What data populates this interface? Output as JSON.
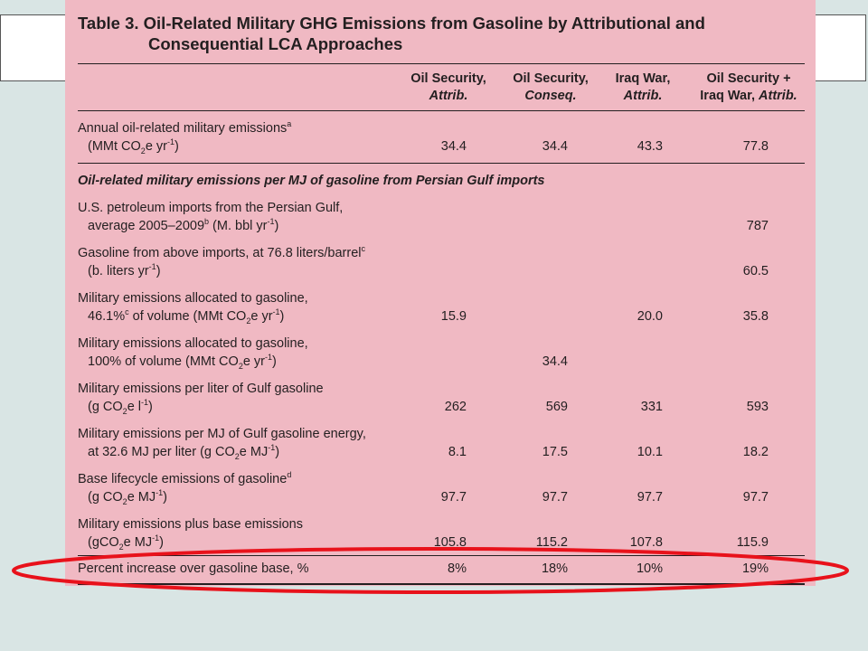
{
  "table": {
    "number": "Table 3.",
    "title_line1": "Oil-Related Military GHG Emissions from Gasoline by Attributional and",
    "title_line2": "Consequential LCA Approaches",
    "columns": [
      {
        "line1": "Oil Security,",
        "line2": "Attrib."
      },
      {
        "line1": "Oil Security,",
        "line2": "Conseq."
      },
      {
        "line1": "Iraq War,",
        "line2": "Attrib."
      },
      {
        "line1": "Oil Security +",
        "line2a": "Iraq War, ",
        "line2b": "Attrib."
      }
    ],
    "section_heading": "Oil-related military emissions per MJ of gasoline from Persian Gulf imports",
    "rows": [
      {
        "l1": "Annual oil-related military emissions",
        "sup1": "a",
        "l2a": "(MMt CO",
        "sub": "2",
        "l2b": "e yr",
        "sup2": "-1",
        "l2c": ")",
        "values": [
          "34.4",
          "34.4",
          "43.3",
          "77.8"
        ]
      },
      {
        "l1": "U.S. petroleum imports from the Persian Gulf,",
        "l2a": "average 2005–2009",
        "sup2": "b",
        "l2b": " (M. bbl yr",
        "sup3": "-1",
        "l2c": ")",
        "values": [
          "",
          "",
          "",
          "787"
        ]
      },
      {
        "l1": "Gasoline from above imports, at 76.8 liters/barrel",
        "sup1": "c",
        "l2a": "(b. liters yr",
        "sup2": "-1",
        "l2c": ")",
        "values": [
          "",
          "",
          "",
          "60.5"
        ]
      },
      {
        "l1": "Military emissions allocated to gasoline,",
        "l2a": "46.1%",
        "sup2": "c",
        "l2b": " of volume (MMt CO",
        "sub": "2",
        "l2c": "e yr",
        "sup3": "-1",
        "l2d": ")",
        "values": [
          "15.9",
          "",
          "20.0",
          "35.8"
        ]
      },
      {
        "l1": "Military emissions allocated to gasoline,",
        "l2a": "100% of volume (MMt CO",
        "sub": "2",
        "l2b": "e yr",
        "sup2": "-1",
        "l2c": ")",
        "values": [
          "",
          "34.4",
          "",
          ""
        ]
      },
      {
        "l1": "Military emissions per liter of Gulf gasoline",
        "l2a": "(g CO",
        "sub": "2",
        "l2b": "e l",
        "sup2": "-1",
        "l2c": ")",
        "values": [
          "262",
          "569",
          "331",
          "593"
        ]
      },
      {
        "l1": "Military emissions per MJ of Gulf gasoline energy,",
        "l2a": "at 32.6 MJ per liter (g CO",
        "sub": "2",
        "l2b": "e MJ",
        "sup2": "-1",
        "l2c": ")",
        "values": [
          "8.1",
          "17.5",
          "10.1",
          "18.2"
        ]
      },
      {
        "l1": "Base lifecycle emissions of gasoline",
        "sup1": "d",
        "l2a": "(g CO",
        "sub": "2",
        "l2b": "e MJ",
        "sup2": "-1",
        "l2c": ")",
        "values": [
          "97.7",
          "97.7",
          "97.7",
          "97.7"
        ]
      },
      {
        "l1": "Military emissions plus base emissions",
        "l2a": "(gCO",
        "sub": "2",
        "l2b": "e MJ",
        "sup2": "-1",
        "l2c": ")",
        "values": [
          "105.8",
          "115.2",
          "107.8",
          "115.9"
        ]
      }
    ],
    "final_row": {
      "label": "Percent increase over gasoline base, %",
      "values": [
        "8%",
        "18%",
        "10%",
        "19%"
      ]
    }
  },
  "colors": {
    "panel": "#f0b9c3",
    "background": "#d9e5e4",
    "highlight": "#e8121b"
  }
}
